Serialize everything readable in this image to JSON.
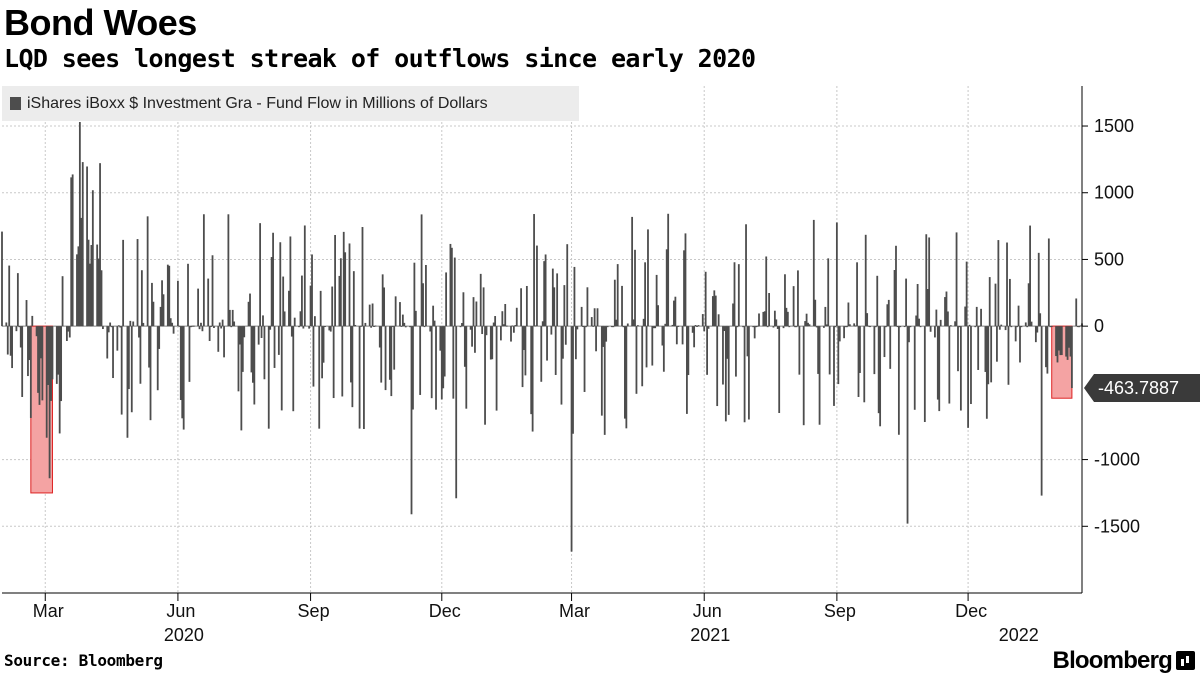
{
  "header": {
    "title": "Bond Woes",
    "subtitle": "LQD sees longest streak of outflows since early 2020"
  },
  "legend": {
    "label": "iShares iBoxx $ Investment Gra - Fund Flow in Millions of Dollars"
  },
  "footer": {
    "source": "Source: Bloomberg",
    "brand": "Bloomberg"
  },
  "chart_data": {
    "type": "bar",
    "series": [
      {
        "name": "iShares iBoxx $ Investment Gra - Fund Flow in Millions of Dollars",
        "color": "#4d4d4d"
      }
    ],
    "x_start": "2020-01-31",
    "x_end": "2022-02-18",
    "ylim": [
      -2000,
      1800
    ],
    "yticks": [
      1500,
      1000,
      500,
      0,
      -1000,
      -1500
    ],
    "ytick_labels": [
      "1500",
      "1000",
      "500",
      "0",
      "-1000",
      "-1500"
    ],
    "month_labels": [
      {
        "date": "2020-03-01",
        "label": "Mar"
      },
      {
        "date": "2020-06-01",
        "label": "Jun"
      },
      {
        "date": "2020-09-01",
        "label": "Sep"
      },
      {
        "date": "2020-12-01",
        "label": "Dec"
      },
      {
        "date": "2021-03-01",
        "label": "Mar"
      },
      {
        "date": "2021-06-01",
        "label": "Jun"
      },
      {
        "date": "2021-09-01",
        "label": "Sep"
      },
      {
        "date": "2021-12-01",
        "label": "Dec"
      }
    ],
    "year_labels": [
      {
        "date": "2020-06-01",
        "label": "2020"
      },
      {
        "date": "2021-06-01",
        "label": "2021"
      },
      {
        "date": "2022-01-01",
        "label": "2022"
      }
    ],
    "highlights": [
      {
        "start": "2020-02-20",
        "end": "2020-03-06",
        "ymin": -1250,
        "ymax": 0,
        "color": "#f4a3a3"
      },
      {
        "start": "2022-01-28",
        "end": "2022-02-11",
        "ymin": -540,
        "ymax": 0,
        "color": "#f4a3a3"
      }
    ],
    "last_value": -463.7887,
    "last_value_label": "-463.7887",
    "grid": true,
    "key_points": [
      {
        "date": "2020-03-25",
        "value": 1530
      },
      {
        "date": "2020-03-04",
        "value": -1140
      },
      {
        "date": "2020-11-10",
        "value": -1410
      },
      {
        "date": "2020-12-11",
        "value": -1290
      },
      {
        "date": "2021-03-01",
        "value": -1690
      },
      {
        "date": "2021-10-20",
        "value": -1480
      },
      {
        "date": "2022-01-21",
        "value": -1270
      },
      {
        "date": "2022-02-11",
        "value": -463.7887
      }
    ]
  }
}
